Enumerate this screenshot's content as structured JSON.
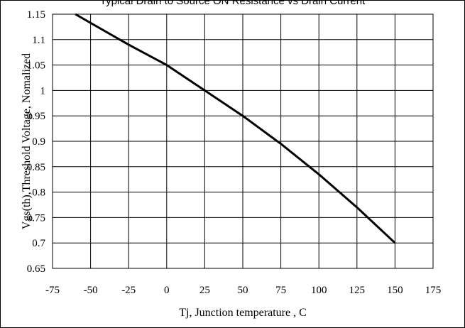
{
  "chart_data": {
    "type": "line",
    "title": "Typical Drain to Source ON Resistance vs Drain Current",
    "xlabel": "Tj, Junction temperature , C",
    "ylabel": "Vgs(th),Threshold Voltage, Nomalized",
    "xlim": [
      -75,
      175
    ],
    "ylim": [
      0.65,
      1.15
    ],
    "x_ticks": [
      "-75",
      "-50",
      "-25",
      "0",
      "25",
      "50",
      "75",
      "100",
      "125",
      "150",
      "175"
    ],
    "y_ticks": [
      "0.65",
      "0.7",
      "0.75",
      "0.8",
      "0.85",
      "0.9",
      "0.95",
      "1",
      "1.05",
      "1.1",
      "1.15"
    ],
    "grid": true,
    "legend": "none",
    "series": [
      {
        "color": "#000000",
        "x": [
          -60,
          -25,
          0,
          25,
          50,
          75,
          100,
          125,
          150
        ],
        "y": [
          1.15,
          1.09,
          1.05,
          1.0,
          0.95,
          0.895,
          0.835,
          0.77,
          0.7
        ]
      }
    ]
  }
}
